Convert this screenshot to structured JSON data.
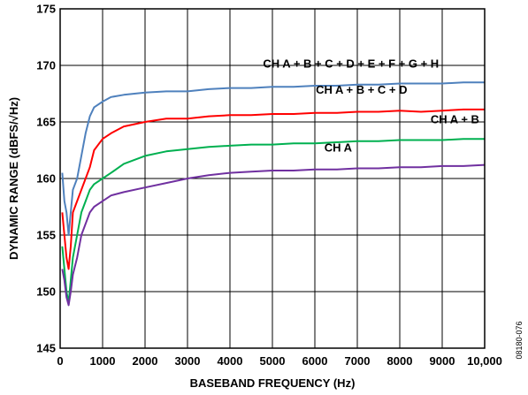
{
  "chart_data": {
    "type": "line",
    "xlabel": "BASEBAND FREQUENCY (Hz)",
    "ylabel": "DYNAMIC RANGE (dBFS/√Hz)",
    "xlim": [
      0,
      10000
    ],
    "ylim": [
      145,
      175
    ],
    "x_ticks": [
      {
        "value": 0,
        "label": "0"
      },
      {
        "value": 1000,
        "label": "1000"
      },
      {
        "value": 2000,
        "label": "2000"
      },
      {
        "value": 3000,
        "label": "3000"
      },
      {
        "value": 4000,
        "label": "4000"
      },
      {
        "value": 5000,
        "label": "5000"
      },
      {
        "value": 6000,
        "label": "6000"
      },
      {
        "value": 7000,
        "label": "7000"
      },
      {
        "value": 8000,
        "label": "8000"
      },
      {
        "value": 9000,
        "label": "9000"
      },
      {
        "value": 10000,
        "label": "10,000"
      }
    ],
    "y_ticks": [
      {
        "value": 145,
        "label": "145"
      },
      {
        "value": 150,
        "label": "150"
      },
      {
        "value": 155,
        "label": "155"
      },
      {
        "value": 160,
        "label": "160"
      },
      {
        "value": 165,
        "label": "165"
      },
      {
        "value": 170,
        "label": "170"
      },
      {
        "value": 175,
        "label": "175"
      }
    ],
    "grid": true,
    "legend": "inline labels",
    "series": [
      {
        "name": "CH A + B + C + D + E + F + G + H",
        "color": "#4f81bd",
        "x": [
          50,
          100,
          150,
          200,
          250,
          300,
          400,
          500,
          600,
          700,
          800,
          1000,
          1200,
          1500,
          2000,
          2500,
          3000,
          3500,
          4000,
          4500,
          5000,
          5500,
          6000,
          6500,
          7000,
          7500,
          8000,
          8500,
          9000,
          9500,
          10000
        ],
        "values": [
          160.5,
          158,
          157,
          155,
          157,
          159,
          160,
          162,
          164,
          165.5,
          166.3,
          166.8,
          167.2,
          167.4,
          167.6,
          167.7,
          167.7,
          167.9,
          168.0,
          168.0,
          168.1,
          168.1,
          168.2,
          168.2,
          168.3,
          168.3,
          168.4,
          168.4,
          168.4,
          168.5,
          168.5
        ]
      },
      {
        "name": "CH A + B + C + D",
        "color": "#ff0000",
        "x": [
          50,
          100,
          150,
          200,
          250,
          300,
          400,
          500,
          600,
          700,
          800,
          1000,
          1200,
          1500,
          2000,
          2500,
          3000,
          3500,
          4000,
          4500,
          5000,
          5500,
          6000,
          6500,
          7000,
          7500,
          8000,
          8500,
          9000,
          9500,
          10000
        ],
        "values": [
          157,
          155,
          153,
          152,
          154,
          157,
          158,
          159,
          160,
          161,
          162.5,
          163.5,
          164,
          164.6,
          165,
          165.3,
          165.3,
          165.5,
          165.6,
          165.6,
          165.7,
          165.7,
          165.8,
          165.8,
          165.9,
          165.9,
          166.0,
          165.9,
          166.0,
          166.1,
          166.1
        ]
      },
      {
        "name": "CH A + B",
        "color": "#00b050",
        "x": [
          50,
          100,
          150,
          200,
          250,
          300,
          400,
          500,
          600,
          700,
          800,
          1000,
          1200,
          1500,
          2000,
          2500,
          3000,
          3500,
          4000,
          4500,
          5000,
          5500,
          6000,
          6500,
          7000,
          7500,
          8000,
          8500,
          9000,
          9500,
          10000
        ],
        "values": [
          154,
          152,
          150,
          149,
          151,
          153,
          155,
          157,
          158,
          159,
          159.5,
          160,
          160.5,
          161.3,
          162.0,
          162.4,
          162.6,
          162.8,
          162.9,
          163.0,
          163.0,
          163.1,
          163.1,
          163.2,
          163.3,
          163.3,
          163.4,
          163.4,
          163.4,
          163.5,
          163.5
        ]
      },
      {
        "name": "CH A",
        "color": "#7030a0",
        "x": [
          50,
          100,
          150,
          200,
          250,
          300,
          400,
          500,
          600,
          700,
          800,
          1000,
          1200,
          1500,
          2000,
          2500,
          3000,
          3500,
          4000,
          4500,
          5000,
          5500,
          6000,
          6500,
          7000,
          7500,
          8000,
          8500,
          9000,
          9500,
          10000
        ],
        "values": [
          152,
          151,
          149.5,
          148.8,
          150,
          151.5,
          153,
          155,
          156,
          157,
          157.5,
          158,
          158.5,
          158.8,
          159.2,
          159.6,
          160.0,
          160.3,
          160.5,
          160.6,
          160.7,
          160.7,
          160.8,
          160.8,
          160.9,
          160.9,
          161.0,
          161.0,
          161.1,
          161.1,
          161.2
        ]
      }
    ],
    "annotations": [
      {
        "text": "CH A + B + C + D + E + F + G + H",
        "x": 6850,
        "y": 169.8,
        "series": 0
      },
      {
        "text": "CH A + B + C + D",
        "x": 7100,
        "y": 167.5,
        "series": 1
      },
      {
        "text": "CH A + B",
        "x": 9300,
        "y": 164.9,
        "series": 2
      },
      {
        "text": "CH A",
        "x": 6550,
        "y": 162.4,
        "series": 3
      }
    ],
    "figure_code": "08180-076"
  }
}
